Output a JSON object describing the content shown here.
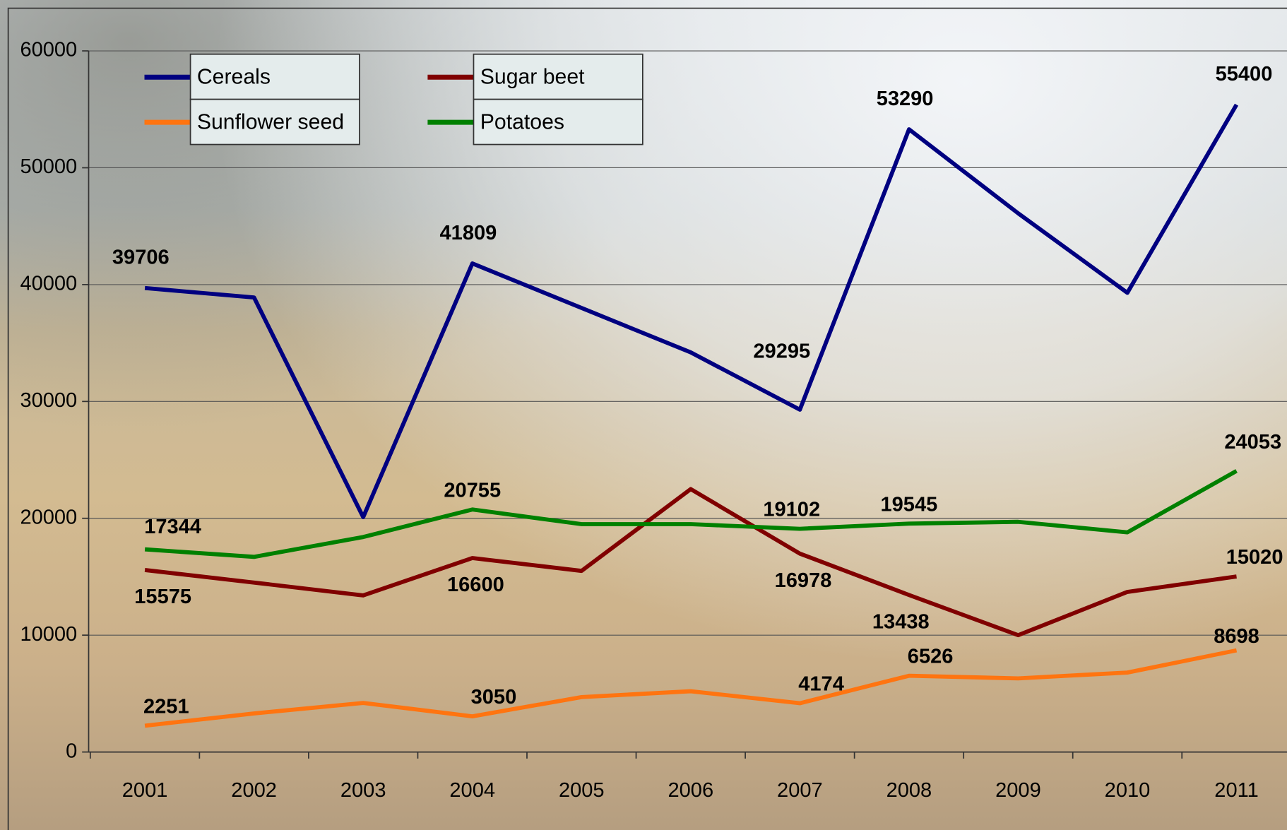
{
  "chart_data": {
    "type": "line",
    "categories": [
      "2001",
      "2002",
      "2003",
      "2004",
      "2005",
      "2006",
      "2007",
      "2008",
      "2009",
      "2010",
      "2011"
    ],
    "ylim": [
      0,
      60000
    ],
    "yticks": [
      0,
      10000,
      20000,
      30000,
      40000,
      50000,
      60000
    ],
    "grid": true,
    "series": [
      {
        "name": "Cereals",
        "color": "#000080",
        "values": [
          39706,
          38900,
          20100,
          41809,
          38000,
          34200,
          29295,
          53290,
          46100,
          39300,
          55400
        ],
        "value_labels": [
          "39706",
          null,
          null,
          "41809",
          null,
          null,
          "29295",
          "53290",
          null,
          null,
          "55400"
        ]
      },
      {
        "name": "Sugar beet",
        "color": "#800000",
        "values": [
          15575,
          14500,
          13400,
          16600,
          15500,
          22500,
          16978,
          13438,
          10000,
          13700,
          15020
        ],
        "value_labels": [
          "15575",
          null,
          null,
          "16600",
          null,
          null,
          "16978",
          "13438",
          null,
          null,
          "15020"
        ]
      },
      {
        "name": "Sunflower seed",
        "color": "#ff7410",
        "values": [
          2251,
          3300,
          4200,
          3050,
          4700,
          5200,
          4174,
          6526,
          6300,
          6800,
          8698
        ],
        "value_labels": [
          "2251",
          null,
          null,
          "3050",
          null,
          null,
          "4174",
          "6526",
          null,
          null,
          "8698"
        ]
      },
      {
        "name": "Potatoes",
        "color": "#008000",
        "values": [
          17344,
          16700,
          18400,
          20755,
          19500,
          19500,
          19102,
          19545,
          19700,
          18800,
          24053
        ],
        "value_labels": [
          "17344",
          null,
          null,
          "20755",
          null,
          null,
          "19102",
          "19545",
          null,
          null,
          "24053"
        ]
      }
    ]
  }
}
